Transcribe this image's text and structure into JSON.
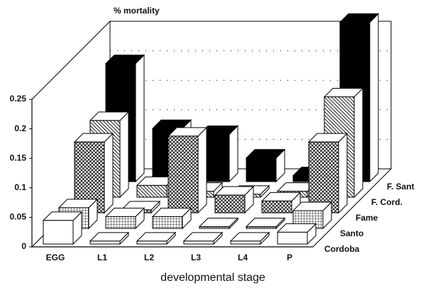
{
  "chart_data": {
    "type": "bar3d",
    "title": "% mortality",
    "xlabel": "developmental stage",
    "categories": [
      "EGG",
      "L1",
      "L2",
      "L3",
      "L4",
      "P"
    ],
    "series": [
      {
        "name": "Cordoba",
        "color": "#ffffff",
        "pattern": "none",
        "values": [
          0.04,
          0.005,
          0.005,
          0.005,
          0.005,
          0.02
        ]
      },
      {
        "name": "Santo",
        "color": "#ffffff",
        "pattern": "grid",
        "values": [
          0.035,
          0.02,
          0.02,
          0.003,
          0.003,
          0.03
        ]
      },
      {
        "name": "Fame",
        "color": "#ffffff",
        "pattern": "cross",
        "values": [
          0.12,
          0.005,
          0.13,
          0.03,
          0.02,
          0.12
        ]
      },
      {
        "name": "F. Cord.",
        "color": "#ffffff",
        "pattern": "hatch",
        "values": [
          0.13,
          0.02,
          0.01,
          0.005,
          0.01,
          0.17
        ]
      },
      {
        "name": "F. Sant",
        "color": "#000000",
        "pattern": "none",
        "values": [
          0.2,
          0.09,
          0.08,
          0.04,
          0.01,
          0.27
        ]
      }
    ],
    "ylim": [
      0,
      0.25
    ],
    "yticks": [
      0,
      0.05,
      0.1,
      0.15,
      0.2,
      0.25
    ],
    "grid": true
  }
}
